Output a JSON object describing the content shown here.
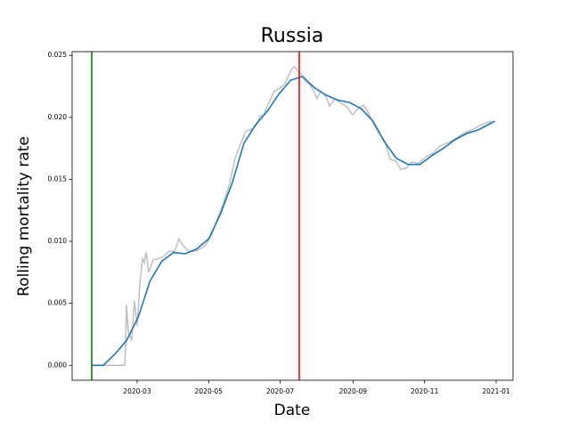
{
  "chart_data": {
    "type": "line",
    "title": "Russia",
    "x_label": "Date",
    "y_label": "Rolling mortality rate",
    "xlim": [
      18266.6,
      18642.4
    ],
    "ylim": [
      -0.0012,
      0.0253
    ],
    "xticks": [
      {
        "value": 18322,
        "label": "2020-03"
      },
      {
        "value": 18383,
        "label": "2020-05"
      },
      {
        "value": 18444,
        "label": "2020-07"
      },
      {
        "value": 18506,
        "label": "2020-09"
      },
      {
        "value": 18567,
        "label": "2020-11"
      },
      {
        "value": 18628,
        "label": "2021-01"
      }
    ],
    "yticks": [
      {
        "value": 0,
        "label": "0.000"
      },
      {
        "value": 0.005,
        "label": "0.005"
      },
      {
        "value": 0.01,
        "label": "0.010"
      },
      {
        "value": 0.015,
        "label": "0.015"
      },
      {
        "value": 0.02,
        "label": "0.020"
      },
      {
        "value": 0.025,
        "label": "0.025"
      }
    ],
    "grid": false,
    "vlines": [
      {
        "value": 18283.3,
        "color": "#008000"
      },
      {
        "value": 18460.2,
        "color": "#ff0000"
      }
    ],
    "series": [
      {
        "color": "#bfbfbf",
        "x": [
          18283.3,
          18311.4,
          18312.1,
          18312.9,
          18314.4,
          18317.4,
          18319.7,
          18322,
          18324.3,
          18326.6,
          18328.1,
          18329.6,
          18331.9,
          18335.7,
          18340.2,
          18344.8,
          18349.3,
          18353.9,
          18357.7,
          18360.7,
          18366.1,
          18372.1,
          18379.7,
          18385.8,
          18390.3,
          18394.9,
          18401,
          18405.5,
          18410,
          18414.6,
          18419.2,
          18423.7,
          18426.8,
          18429.8,
          18434.4,
          18438.9,
          18444.2,
          18448,
          18452.6,
          18455.6,
          18458.7,
          18461.7,
          18464.7,
          18469.3,
          18472.3,
          18475.4,
          18478.4,
          18483,
          18486,
          18490.6,
          18495.1,
          18501.2,
          18505.8,
          18510.3,
          18514.9,
          18519.4,
          18524,
          18528.5,
          18533.1,
          18537.6,
          18542.2,
          18546.8,
          18551.3,
          18555.9,
          18561.9,
          18568,
          18574.1,
          18580.2,
          18587.8,
          18593.8,
          18599.9,
          18607.5,
          18615.1,
          18624.2
        ],
        "values": [
          0,
          0,
          0.0014,
          0.0049,
          0.0027,
          0.002,
          0.0052,
          0.0032,
          0.0065,
          0.0086,
          0.0083,
          0.0091,
          0.0075,
          0.0085,
          0.0086,
          0.0088,
          0.0092,
          0.0092,
          0.0102,
          0.0097,
          0.0092,
          0.0092,
          0.0096,
          0.0106,
          0.0118,
          0.0129,
          0.0147,
          0.0167,
          0.0178,
          0.0189,
          0.019,
          0.0194,
          0.0201,
          0.0202,
          0.0212,
          0.0221,
          0.0224,
          0.0227,
          0.0237,
          0.0241,
          0.0238,
          0.0235,
          0.023,
          0.0226,
          0.0222,
          0.0215,
          0.0221,
          0.0217,
          0.0209,
          0.0215,
          0.0212,
          0.0208,
          0.0202,
          0.0207,
          0.021,
          0.0203,
          0.0194,
          0.0187,
          0.0181,
          0.0166,
          0.0165,
          0.0158,
          0.0159,
          0.0164,
          0.0163,
          0.0168,
          0.0171,
          0.0177,
          0.018,
          0.0183,
          0.0187,
          0.019,
          0.0194,
          0.0197
        ]
      },
      {
        "color": "#1f77b4",
        "x": [
          18283,
          18293,
          18303,
          18313,
          18323,
          18333,
          18343,
          18353,
          18363,
          18373,
          18383,
          18393,
          18403,
          18413,
          18423,
          18433,
          18443,
          18453,
          18463,
          18473,
          18483,
          18493,
          18503,
          18513,
          18523,
          18533,
          18543,
          18553,
          18563,
          18573,
          18583,
          18593,
          18603,
          18613,
          18623,
          18627
        ],
        "values": [
          0,
          0,
          0.0009,
          0.002,
          0.0039,
          0.0068,
          0.0084,
          0.0091,
          0.009,
          0.0094,
          0.0102,
          0.0122,
          0.0147,
          0.0179,
          0.0194,
          0.0205,
          0.0219,
          0.023,
          0.0233,
          0.0224,
          0.0218,
          0.0214,
          0.0212,
          0.0207,
          0.0197,
          0.018,
          0.0167,
          0.0162,
          0.0162,
          0.0169,
          0.0175,
          0.0182,
          0.0187,
          0.019,
          0.0195,
          0.0197
        ]
      }
    ]
  }
}
